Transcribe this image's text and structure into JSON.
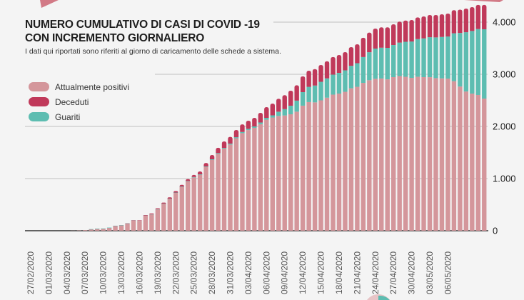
{
  "chart_data": {
    "type": "bar",
    "stacked": true,
    "title": "NUMERO CUMULATIVO DI CASI DI COVID -19 CON INCREMENTO GIORNALIERO",
    "title_lines": [
      "NUMERO CUMULATIVO DI CASI DI COVID -19",
      "CON INCREMENTO GIORNALIERO"
    ],
    "subtitle": "I dati qui riportati sono riferiti al giorno di caricamento delle schede a sistema.",
    "xlabel": "",
    "ylabel": "",
    "ylim": [
      0,
      4400
    ],
    "y_ticks": [
      0,
      1000,
      2000,
      3000,
      4000
    ],
    "y_tick_labels": [
      "0",
      "1.000",
      "2.000",
      "3.000",
      "4.000"
    ],
    "x_tick_labels": [
      "27/02/2020",
      "01/03/2020",
      "04/03/2020",
      "07/03/2020",
      "10/03/2020",
      "13/03/2020",
      "16/03/2020",
      "19/03/2020",
      "22/03/2020",
      "25/03/2020",
      "28/03/2020",
      "31/03/2020",
      "03/04/2020",
      "06/04/2020",
      "09/04/2020",
      "12/04/2020",
      "15/04/2020",
      "18/04/2020",
      "21/04/2020",
      "24/04/2020",
      "27/04/2020",
      "30/04/2020",
      "03/05/2020",
      "06/05/2020"
    ],
    "x_start": "27/02/2020",
    "x_end": "12/05/2020",
    "grid": true,
    "legend_position": "top-left",
    "series": [
      {
        "name": "Attualmente positivi",
        "color": "#d4969b",
        "values": [
          0,
          0,
          0,
          0,
          0,
          0,
          0,
          2,
          5,
          12,
          23,
          33,
          36,
          52,
          87,
          101,
          134,
          192,
          190,
          288,
          312,
          408,
          514,
          610,
          725,
          841,
          946,
          1022,
          1074,
          1222,
          1358,
          1475,
          1575,
          1652,
          1774,
          1871,
          1930,
          1973,
          2043,
          2129,
          2171,
          2201,
          2210,
          2233,
          2283,
          2398,
          2467,
          2461,
          2500,
          2551,
          2610,
          2630,
          2664,
          2731,
          2760,
          2835,
          2886,
          2913,
          2919,
          2903,
          2945,
          2965,
          2952,
          2931,
          2953,
          2945,
          2944,
          2926,
          2921,
          2917,
          2868,
          2765,
          2670,
          2629,
          2603,
          2534
        ]
      },
      {
        "name": "Guariti",
        "color": "#5dbdb1",
        "values": [
          0,
          0,
          0,
          0,
          0,
          0,
          0,
          0,
          0,
          0,
          1,
          1,
          1,
          1,
          1,
          1,
          1,
          1,
          1,
          1,
          3,
          4,
          4,
          5,
          6,
          6,
          7,
          8,
          9,
          10,
          12,
          13,
          14,
          17,
          19,
          22,
          24,
          27,
          32,
          36,
          41,
          82,
          123,
          164,
          212,
          260,
          292,
          324,
          356,
          370,
          384,
          397,
          411,
          432,
          452,
          495,
          537,
          580,
          592,
          604,
          616,
          643,
          671,
          698,
          721,
          744,
          767,
          781,
          794,
          808,
          918,
          1027,
          1137,
          1201,
          1265,
          1329
        ]
      },
      {
        "name": "Deceduti",
        "color": "#c0395a",
        "values": [
          0,
          0,
          0,
          0,
          0,
          0,
          0,
          0,
          0,
          0,
          1,
          1,
          1,
          2,
          2,
          3,
          5,
          7,
          9,
          11,
          15,
          18,
          22,
          25,
          29,
          33,
          37,
          40,
          54,
          68,
          82,
          102,
          123,
          131,
          139,
          147,
          156,
          164,
          185,
          205,
          226,
          247,
          267,
          288,
          295,
          302,
          309,
          315,
          322,
          329,
          336,
          343,
          350,
          357,
          363,
          370,
          377,
          384,
          389,
          393,
          398,
          402,
          407,
          412,
          416,
          421,
          426,
          430,
          435,
          439,
          444,
          448,
          453,
          458,
          462,
          467
        ]
      }
    ],
    "legend_order": [
      "Attualmente positivi",
      "Deceduti",
      "Guariti"
    ]
  }
}
